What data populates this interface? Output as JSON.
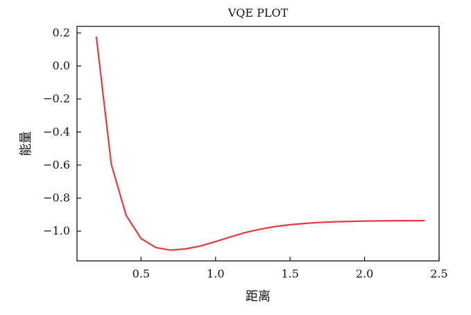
{
  "chart_data": {
    "type": "line",
    "title": "VQE PLOT",
    "xlabel": "距离",
    "ylabel": "能量",
    "xlim": [
      0.07,
      2.5
    ],
    "ylim": [
      -1.18,
      0.24
    ],
    "xticks": [
      0.5,
      1.0,
      1.5,
      2.0,
      2.5
    ],
    "xtick_labels": [
      "0.5",
      "1.0",
      "1.5",
      "2.0",
      "2.5"
    ],
    "yticks": [
      0.2,
      0.0,
      -0.2,
      -0.4,
      -0.6,
      -0.8,
      -1.0
    ],
    "ytick_labels": [
      "0.2",
      "0.0",
      "−0.2",
      "−0.4",
      "−0.6",
      "−0.8",
      "−1.0"
    ],
    "grid": false,
    "series": [
      {
        "color": "#e8383b",
        "x": [
          0.2,
          0.3,
          0.4,
          0.5,
          0.6,
          0.7,
          0.8,
          0.9,
          1.0,
          1.1,
          1.2,
          1.3,
          1.4,
          1.5,
          1.6,
          1.7,
          1.8,
          1.9,
          2.0,
          2.1,
          2.2,
          2.3,
          2.4
        ],
        "y": [
          0.175,
          -0.595,
          -0.905,
          -1.045,
          -1.1,
          -1.115,
          -1.107,
          -1.09,
          -1.063,
          -1.035,
          -1.008,
          -0.988,
          -0.972,
          -0.961,
          -0.953,
          -0.947,
          -0.943,
          -0.941,
          -0.939,
          -0.938,
          -0.937,
          -0.937,
          -0.936
        ]
      }
    ]
  }
}
